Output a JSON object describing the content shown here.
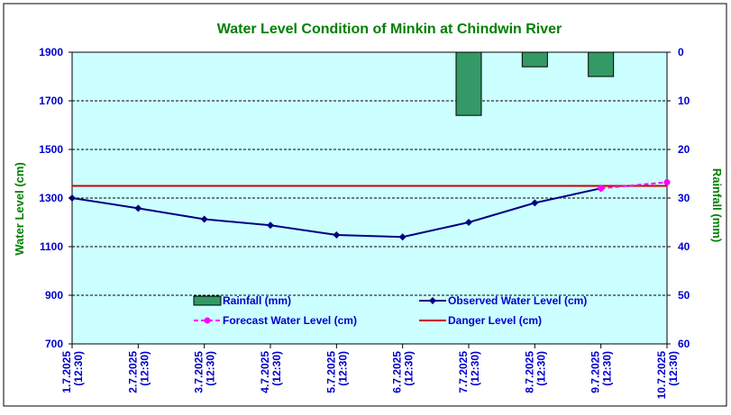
{
  "chart_data": {
    "type": "line",
    "title": "Water Level Condition of Minkin at Chindwin River",
    "ylabel": "Water Level (cm)",
    "y2label": "Rainfall (mm)",
    "ylim": [
      700,
      1900
    ],
    "y2lim": [
      60,
      0
    ],
    "yticks": [
      700,
      900,
      1100,
      1300,
      1500,
      1700,
      1900
    ],
    "y2ticks": [
      0,
      10,
      20,
      30,
      40,
      50,
      60
    ],
    "grid": true,
    "categories": [
      [
        "1.7.2025",
        "(12:30)"
      ],
      [
        "2.7.2025",
        "(12:30)"
      ],
      [
        "3.7.2025",
        "(12:30)"
      ],
      [
        "4.7.2025",
        "(12:30)"
      ],
      [
        "5.7.2025",
        "(12:30)"
      ],
      [
        "6.7.2025",
        "(12:30)"
      ],
      [
        "7.7.2025",
        "(12:30)"
      ],
      [
        "8.7.2025",
        "(12:30)"
      ],
      [
        "9.7.2025",
        "(12:30)"
      ],
      [
        "10.7.2025",
        "(12:30)"
      ]
    ],
    "series": [
      {
        "name": "Rainfall (mm)",
        "kind": "bar",
        "axis": "y2",
        "color": "#339966",
        "values": [
          null,
          null,
          null,
          null,
          null,
          null,
          13,
          3,
          5,
          null
        ]
      },
      {
        "name": "Observed Water Level (cm)",
        "kind": "line",
        "axis": "y",
        "color": "#000080",
        "values": [
          1300,
          1258,
          1213,
          1188,
          1148,
          1140,
          1200,
          1280,
          1340,
          null
        ]
      },
      {
        "name": "Forecast Water Level (cm)",
        "kind": "line-dashed",
        "axis": "y",
        "color": "#ff00ff",
        "values": [
          null,
          null,
          null,
          null,
          null,
          null,
          null,
          null,
          1340,
          1365
        ]
      },
      {
        "name": "Danger Level (cm)",
        "kind": "hline",
        "axis": "y",
        "color": "#cc0000",
        "value": 1350
      }
    ],
    "legend_position": "bottom-center-inside",
    "colors": {
      "plot_background": "#ccffff",
      "title": "#008000",
      "axis_text": "#0000cc",
      "axis_title": "#008000"
    }
  }
}
